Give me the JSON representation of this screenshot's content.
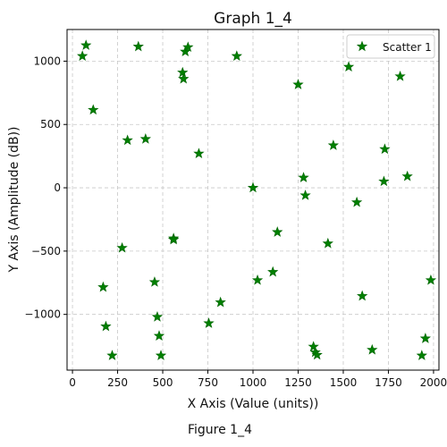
{
  "chart_data": {
    "type": "scatter",
    "title": "Graph 1_4",
    "xlabel": "X Axis (Value (units))",
    "ylabel": "Y Axis (Amplitude (dB))",
    "caption": "Figure 1_4",
    "xlim": [
      -30,
      2030
    ],
    "ylim": [
      -1440,
      1250
    ],
    "xticks": [
      0,
      250,
      500,
      750,
      1000,
      1250,
      1500,
      1750,
      2000
    ],
    "yticks": [
      -1000,
      -500,
      0,
      500,
      1000
    ],
    "grid": true,
    "legend_position": "top-right",
    "marker": "star",
    "color": "#008000",
    "series": [
      {
        "name": "Scatter 1",
        "points": [
          [
            55,
            1040
          ],
          [
            75,
            1125
          ],
          [
            115,
            615
          ],
          [
            170,
            -785
          ],
          [
            185,
            -1095
          ],
          [
            220,
            -1325
          ],
          [
            275,
            -475
          ],
          [
            305,
            375
          ],
          [
            365,
            1115
          ],
          [
            405,
            385
          ],
          [
            455,
            -745
          ],
          [
            470,
            -1020
          ],
          [
            480,
            -1170
          ],
          [
            490,
            -1325
          ],
          [
            560,
            -400
          ],
          [
            560,
            -410
          ],
          [
            610,
            910
          ],
          [
            615,
            860
          ],
          [
            625,
            1075
          ],
          [
            640,
            1110
          ],
          [
            700,
            270
          ],
          [
            755,
            -1070
          ],
          [
            820,
            -905
          ],
          [
            910,
            1040
          ],
          [
            1000,
            0
          ],
          [
            1025,
            -730
          ],
          [
            1110,
            -665
          ],
          [
            1135,
            -350
          ],
          [
            1250,
            815
          ],
          [
            1280,
            80
          ],
          [
            1290,
            -60
          ],
          [
            1335,
            -1255
          ],
          [
            1345,
            -1300
          ],
          [
            1355,
            -1320
          ],
          [
            1415,
            -440
          ],
          [
            1445,
            335
          ],
          [
            1530,
            955
          ],
          [
            1575,
            -115
          ],
          [
            1605,
            -855
          ],
          [
            1660,
            -1280
          ],
          [
            1725,
            50
          ],
          [
            1730,
            305
          ],
          [
            1815,
            880
          ],
          [
            1855,
            90
          ],
          [
            1935,
            -1325
          ],
          [
            1955,
            -1190
          ],
          [
            1985,
            -730
          ]
        ]
      }
    ]
  }
}
